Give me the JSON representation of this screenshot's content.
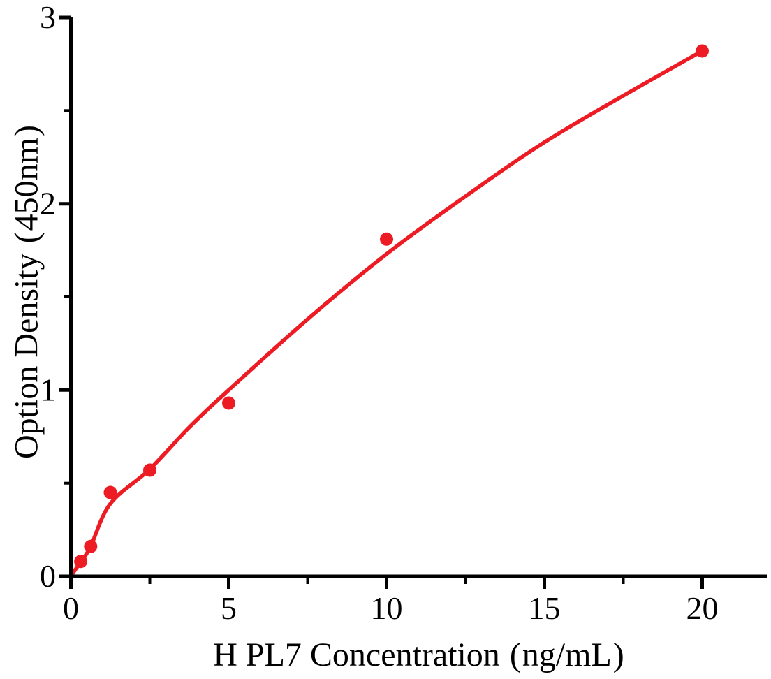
{
  "chart_data": {
    "type": "scatter",
    "xlabel": "H PL7 Concentration（ng/mL）",
    "ylabel": "Option Density（450nm）",
    "xlim": [
      0,
      22.1
    ],
    "ylim": [
      0,
      3
    ],
    "x_ticks": [
      0,
      5,
      10,
      15,
      20
    ],
    "x_minor_ticks": [
      2.5,
      7.5,
      12.5,
      17.5
    ],
    "y_ticks": [
      0,
      1,
      2,
      3
    ],
    "y_minor_ticks": [
      0.5,
      1.5,
      2.5
    ],
    "grid": false,
    "legend": false,
    "series": [
      {
        "name": "standard-points",
        "type": "scatter",
        "color": "#ed1c24",
        "points": [
          {
            "x": 0.313,
            "y": 0.08
          },
          {
            "x": 0.625,
            "y": 0.16
          },
          {
            "x": 1.25,
            "y": 0.45
          },
          {
            "x": 2.5,
            "y": 0.57
          },
          {
            "x": 5,
            "y": 0.93
          },
          {
            "x": 10,
            "y": 1.81
          },
          {
            "x": 20,
            "y": 2.82
          }
        ]
      },
      {
        "name": "fitted-curve",
        "type": "line",
        "color": "#ed1c24",
        "samples": [
          [
            0,
            0
          ],
          [
            0.156,
            0.04
          ],
          [
            0.313,
            0.075
          ],
          [
            0.625,
            0.16
          ],
          [
            1.25,
            0.39
          ],
          [
            2.5,
            0.575
          ],
          [
            3.75,
            0.8
          ],
          [
            5,
            1.0
          ],
          [
            7.5,
            1.38
          ],
          [
            10,
            1.73
          ],
          [
            12.5,
            2.04
          ],
          [
            15,
            2.33
          ],
          [
            17.5,
            2.58
          ],
          [
            20,
            2.82
          ]
        ]
      }
    ]
  },
  "labels": {
    "x_tick_labels": [
      "0",
      "5",
      "10",
      "15",
      "20"
    ],
    "y_tick_labels": [
      "0",
      "1",
      "2",
      "3"
    ],
    "x_title": {
      "text": "H PL7 Concentration",
      "open": "(",
      "unit": "ng/mL",
      "close": ")"
    },
    "y_title": {
      "text": "Option Density",
      "open": "(",
      "unit": "450nm",
      "close": ")"
    }
  },
  "style": {
    "point_color": "#ed1c24",
    "curve_color": "#ed1c24",
    "axis_color": "#000000",
    "background": "#ffffff"
  }
}
